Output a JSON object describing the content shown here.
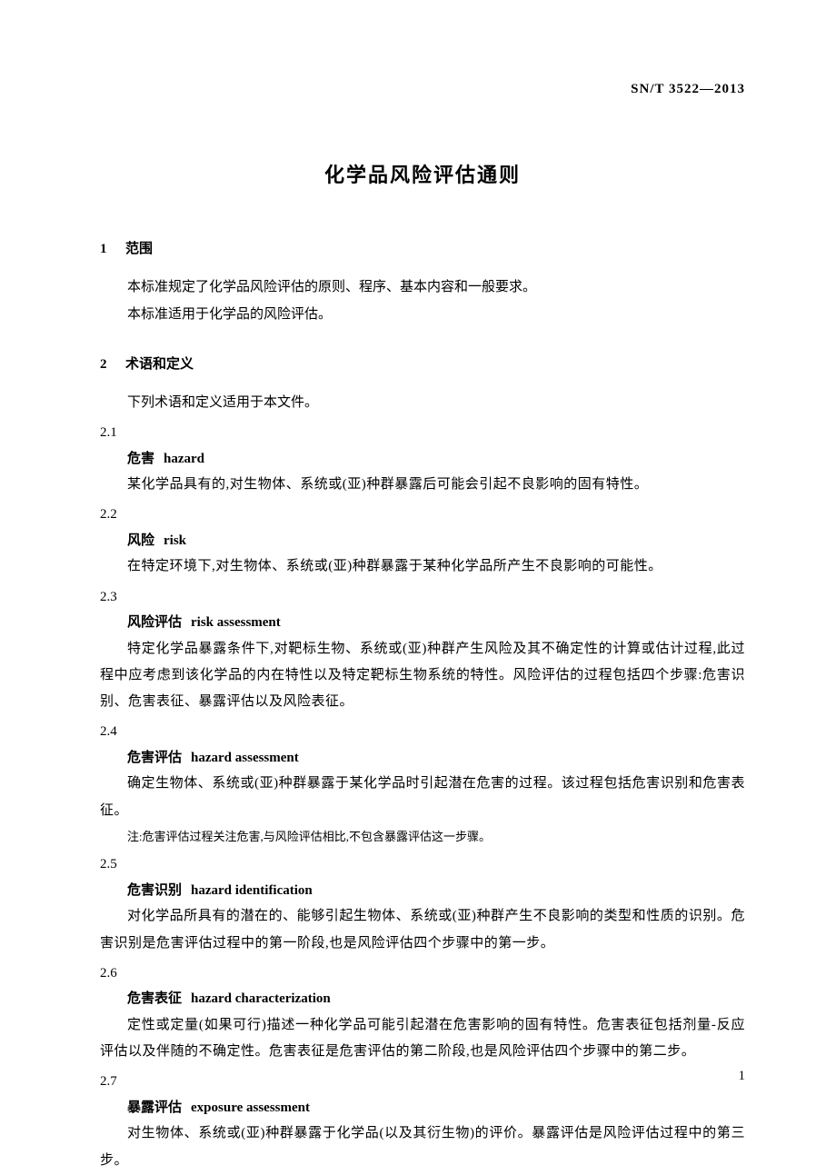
{
  "header": {
    "standard_code": "SN/T 3522—2013"
  },
  "title": "化学品风险评估通则",
  "sections": {
    "s1": {
      "num": "1",
      "heading": "范围",
      "p1": "本标准规定了化学品风险评估的原则、程序、基本内容和一般要求。",
      "p2": "本标准适用于化学品的风险评估。"
    },
    "s2": {
      "num": "2",
      "heading": "术语和定义",
      "intro": "下列术语和定义适用于本文件。",
      "terms": {
        "t21": {
          "num": "2.1",
          "zh": "危害",
          "en": "hazard",
          "def": "某化学品具有的,对生物体、系统或(亚)种群暴露后可能会引起不良影响的固有特性。"
        },
        "t22": {
          "num": "2.2",
          "zh": "风险",
          "en": "risk",
          "def": "在特定环境下,对生物体、系统或(亚)种群暴露于某种化学品所产生不良影响的可能性。"
        },
        "t23": {
          "num": "2.3",
          "zh": "风险评估",
          "en": "risk assessment",
          "def": "特定化学品暴露条件下,对靶标生物、系统或(亚)种群产生风险及其不确定性的计算或估计过程,此过程中应考虑到该化学品的内在特性以及特定靶标生物系统的特性。风险评估的过程包括四个步骤:危害识别、危害表征、暴露评估以及风险表征。"
        },
        "t24": {
          "num": "2.4",
          "zh": "危害评估",
          "en": "hazard assessment",
          "def": "确定生物体、系统或(亚)种群暴露于某化学品时引起潜在危害的过程。该过程包括危害识别和危害表征。",
          "note": "注:危害评估过程关注危害,与风险评估相比,不包含暴露评估这一步骤。"
        },
        "t25": {
          "num": "2.5",
          "zh": "危害识别",
          "en": "hazard identification",
          "def": "对化学品所具有的潜在的、能够引起生物体、系统或(亚)种群产生不良影响的类型和性质的识别。危害识别是危害评估过程中的第一阶段,也是风险评估四个步骤中的第一步。"
        },
        "t26": {
          "num": "2.6",
          "zh": "危害表征",
          "en": "hazard characterization",
          "def": "定性或定量(如果可行)描述一种化学品可能引起潜在危害影响的固有特性。危害表征包括剂量-反应评估以及伴随的不确定性。危害表征是危害评估的第二阶段,也是风险评估四个步骤中的第二步。"
        },
        "t27": {
          "num": "2.7",
          "zh": "暴露评估",
          "en": "exposure assessment",
          "def": "对生物体、系统或(亚)种群暴露于化学品(以及其衍生物)的评价。暴露评估是风险评估过程中的第三步。"
        }
      }
    }
  },
  "page_number": "1",
  "styles": {
    "background_color": "#ffffff",
    "text_color": "#000000",
    "title_fontsize": 22,
    "heading_fontsize": 15,
    "body_fontsize": 15,
    "note_fontsize": 13,
    "line_height": 2.0
  }
}
